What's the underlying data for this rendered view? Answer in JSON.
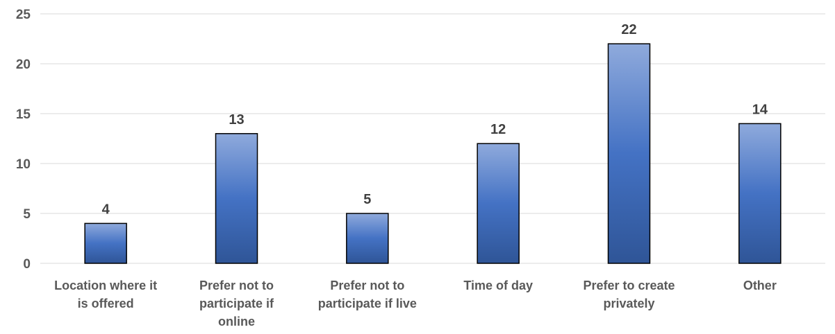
{
  "chart_data": {
    "type": "bar",
    "categories": [
      [
        "Location where it",
        "is offered"
      ],
      [
        "Prefer not to",
        "participate if",
        "online"
      ],
      [
        "Prefer not to",
        "participate if live"
      ],
      [
        "Time of day"
      ],
      [
        "Prefer to create",
        "privately"
      ],
      [
        "Other"
      ]
    ],
    "values": [
      4,
      13,
      5,
      12,
      22,
      14
    ],
    "ylim": [
      0,
      25
    ],
    "yticks": [
      0,
      5,
      10,
      15,
      20,
      25
    ],
    "title": "",
    "xlabel": "",
    "ylabel": "",
    "grid": true,
    "legend": "none",
    "colors": {
      "bar_top": "#8faadc",
      "bar_mid": "#4472c4",
      "bar_bottom": "#2f5597",
      "bar_border": "#000000",
      "grid": "#d9d9d9",
      "text": "#595959"
    }
  }
}
